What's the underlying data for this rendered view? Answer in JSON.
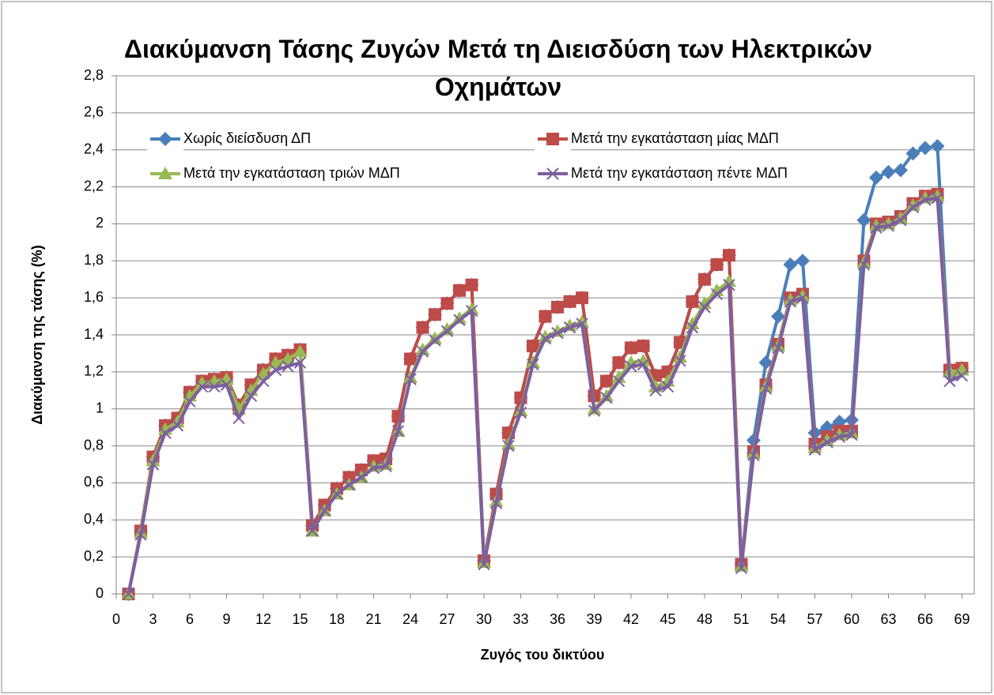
{
  "chart_data": {
    "type": "line",
    "title": "Διακύμανση Τάσης Ζυγών Μετά τη Διεισδύση των Ηλεκτρικών Οχημάτων",
    "xlabel": "Ζυγός του δικτύου",
    "ylabel": "Διακύμανση της τάσης (%)",
    "x": [
      1,
      2,
      3,
      4,
      5,
      6,
      7,
      8,
      9,
      10,
      11,
      12,
      13,
      14,
      15,
      16,
      17,
      18,
      19,
      20,
      21,
      22,
      23,
      24,
      25,
      26,
      27,
      28,
      29,
      30,
      31,
      32,
      33,
      34,
      35,
      36,
      37,
      38,
      39,
      40,
      41,
      42,
      43,
      44,
      45,
      46,
      47,
      48,
      49,
      50,
      51,
      52,
      53,
      54,
      55,
      56,
      57,
      58,
      59,
      60,
      61,
      62,
      63,
      64,
      65,
      66,
      67,
      68,
      69
    ],
    "xlim": [
      0,
      70
    ],
    "xticks": [
      0,
      3,
      6,
      9,
      12,
      15,
      18,
      21,
      24,
      27,
      30,
      33,
      36,
      39,
      42,
      45,
      48,
      51,
      54,
      57,
      60,
      63,
      66,
      69
    ],
    "ylim": [
      0,
      2.8
    ],
    "yticks": [
      0,
      {
        "value": 0.2,
        "label": "0,2"
      },
      {
        "value": 0.4,
        "label": "0,4"
      },
      {
        "value": 0.6,
        "label": "0,6"
      },
      {
        "value": 0.8,
        "label": "0,8"
      },
      1,
      {
        "value": 1.2,
        "label": "1,2"
      },
      {
        "value": 1.4,
        "label": "1,4"
      },
      {
        "value": 1.6,
        "label": "1,6"
      },
      {
        "value": 1.8,
        "label": "1,8"
      },
      2,
      {
        "value": 2.2,
        "label": "2,2"
      },
      {
        "value": 2.4,
        "label": "2,4"
      },
      {
        "value": 2.6,
        "label": "2,6"
      },
      {
        "value": 2.8,
        "label": "2,8"
      }
    ],
    "grid": true,
    "legend": "top",
    "series": [
      {
        "name": "Χωρίς διείσδυση ΔΠ",
        "color": "#4a7ebb",
        "marker": "diamond",
        "values": [
          0,
          0.34,
          0.74,
          0.91,
          0.95,
          1.09,
          1.15,
          1.16,
          1.17,
          1.02,
          1.13,
          1.21,
          1.27,
          1.29,
          1.32,
          0.37,
          0.48,
          0.57,
          0.63,
          0.67,
          0.72,
          0.73,
          0.96,
          1.27,
          1.44,
          1.51,
          1.57,
          1.64,
          1.67,
          0.18,
          0.54,
          0.87,
          1.06,
          1.34,
          1.5,
          1.55,
          1.58,
          1.6,
          1.07,
          1.15,
          1.25,
          1.33,
          1.34,
          1.18,
          1.2,
          1.36,
          1.58,
          1.7,
          1.78,
          1.83,
          0.16,
          0.83,
          1.25,
          1.5,
          1.78,
          1.8,
          0.87,
          0.9,
          0.93,
          0.94,
          2.02,
          2.25,
          2.28,
          2.29,
          2.38,
          2.41,
          2.42,
          1.2,
          1.22
        ]
      },
      {
        "name": "Μετά την εγκατάσταση μίας ΜΔΠ",
        "color": "#be4b48",
        "marker": "square",
        "values": [
          0,
          0.34,
          0.74,
          0.91,
          0.95,
          1.09,
          1.15,
          1.16,
          1.17,
          1.02,
          1.13,
          1.21,
          1.27,
          1.29,
          1.32,
          0.37,
          0.48,
          0.57,
          0.63,
          0.67,
          0.72,
          0.73,
          0.96,
          1.27,
          1.44,
          1.51,
          1.57,
          1.64,
          1.67,
          0.18,
          0.54,
          0.87,
          1.06,
          1.34,
          1.5,
          1.55,
          1.58,
          1.6,
          1.07,
          1.15,
          1.25,
          1.33,
          1.34,
          1.18,
          1.2,
          1.36,
          1.58,
          1.7,
          1.78,
          1.83,
          0.16,
          0.77,
          1.13,
          1.35,
          1.6,
          1.62,
          0.81,
          0.85,
          0.88,
          0.88,
          1.8,
          2.0,
          2.01,
          2.04,
          2.11,
          2.15,
          2.16,
          1.21,
          1.22
        ]
      },
      {
        "name": "Μετά την εγκατάσταση τριών ΜΔΠ",
        "color": "#98b954",
        "marker": "triangle",
        "values": [
          0,
          0.33,
          0.72,
          0.89,
          0.93,
          1.07,
          1.14,
          1.15,
          1.16,
          1.0,
          1.1,
          1.19,
          1.25,
          1.27,
          1.31,
          0.34,
          0.45,
          0.54,
          0.59,
          0.63,
          0.69,
          0.7,
          0.88,
          1.17,
          1.32,
          1.38,
          1.43,
          1.49,
          1.54,
          0.17,
          0.5,
          0.81,
          0.99,
          1.25,
          1.39,
          1.42,
          1.45,
          1.47,
          1.0,
          1.07,
          1.17,
          1.25,
          1.26,
          1.12,
          1.15,
          1.28,
          1.46,
          1.57,
          1.64,
          1.69,
          0.15,
          0.76,
          1.12,
          1.34,
          1.59,
          1.61,
          0.79,
          0.83,
          0.86,
          0.87,
          1.79,
          1.99,
          2.0,
          2.03,
          2.1,
          2.14,
          2.15,
          1.2,
          1.21
        ]
      },
      {
        "name": "Μετά την εγκατάσταση πέντε ΜΔΠ",
        "color": "#7d5fa0",
        "marker": "x",
        "values": [
          0,
          0.32,
          0.7,
          0.87,
          0.91,
          1.04,
          1.12,
          1.12,
          1.13,
          0.95,
          1.07,
          1.15,
          1.21,
          1.23,
          1.25,
          0.34,
          0.45,
          0.54,
          0.59,
          0.63,
          0.68,
          0.69,
          0.88,
          1.16,
          1.31,
          1.37,
          1.42,
          1.48,
          1.53,
          0.16,
          0.49,
          0.8,
          0.98,
          1.24,
          1.38,
          1.41,
          1.44,
          1.46,
          0.99,
          1.06,
          1.15,
          1.23,
          1.24,
          1.1,
          1.12,
          1.26,
          1.44,
          1.55,
          1.62,
          1.67,
          0.14,
          0.75,
          1.11,
          1.33,
          1.58,
          1.6,
          0.78,
          0.82,
          0.85,
          0.86,
          1.78,
          1.98,
          1.99,
          2.02,
          2.09,
          2.13,
          2.14,
          1.15,
          1.18
        ]
      }
    ]
  }
}
